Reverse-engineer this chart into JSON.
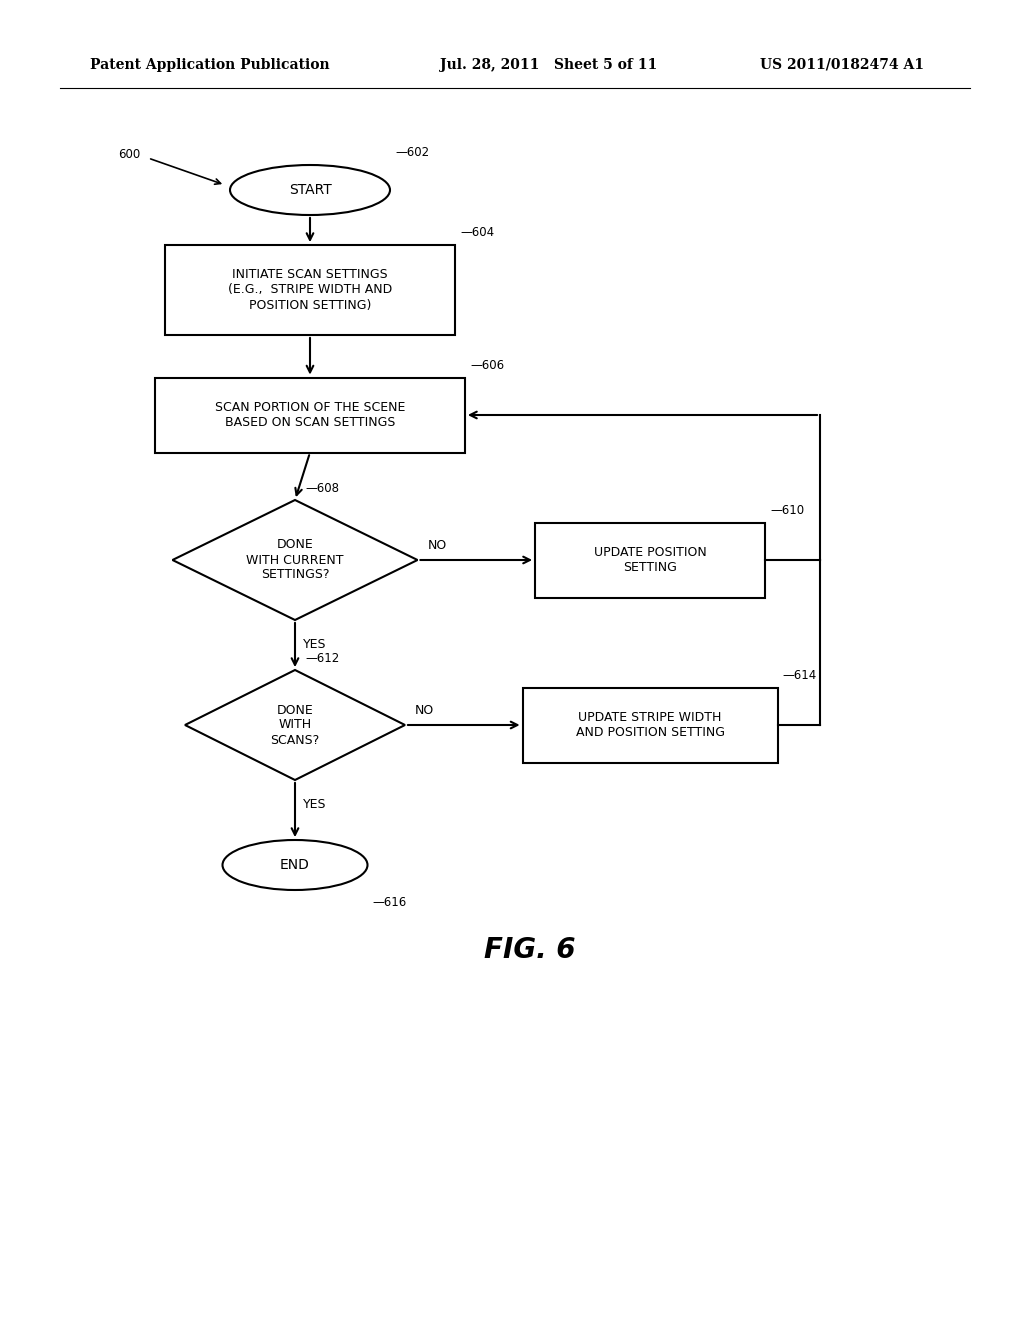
{
  "background_color": "#ffffff",
  "header_left": "Patent Application Publication",
  "header_mid": "Jul. 28, 2011   Sheet 5 of 11",
  "header_right": "US 2011/0182474 A1",
  "fig_label": "FIG. 6",
  "line_color": "#000000",
  "text_color": "#000000",
  "font_size_node": 9,
  "font_size_header": 10,
  "font_size_label": 8.5,
  "font_size_fig": 20
}
